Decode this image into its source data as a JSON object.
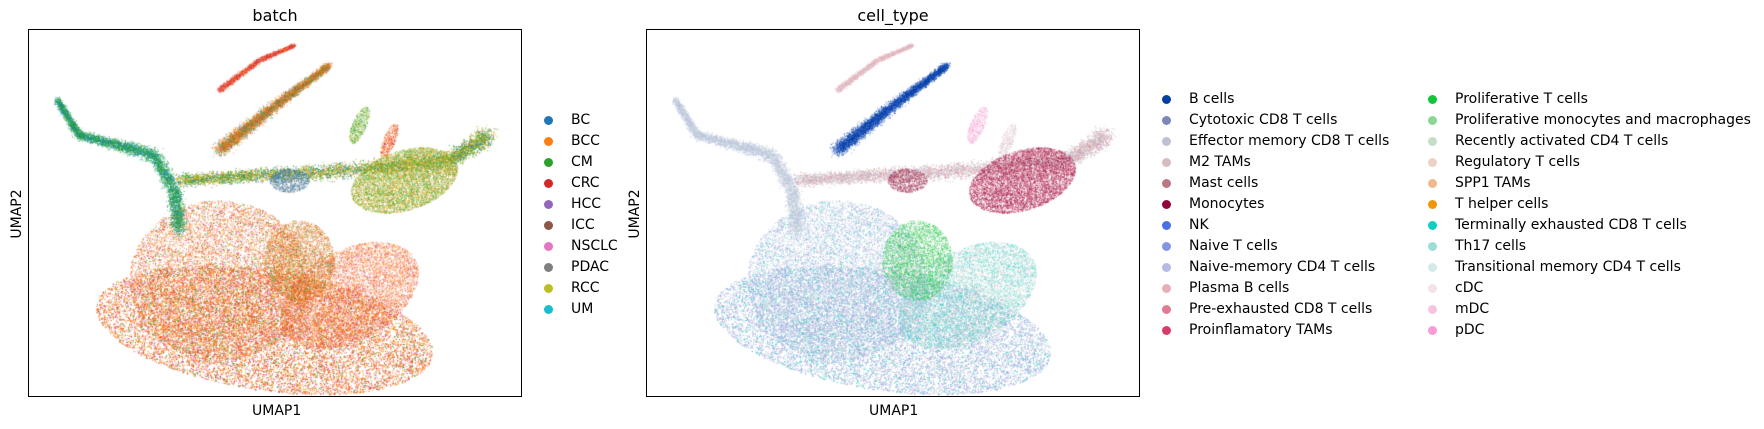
{
  "chart_data": [
    {
      "type": "scatter",
      "title": "batch",
      "xlabel": "UMAP1",
      "ylabel": "UMAP2",
      "grid": false,
      "legend_placement": "right",
      "categories": [
        "BC",
        "BCC",
        "CM",
        "CRC",
        "HCC",
        "ICC",
        "NSCLC",
        "PDAC",
        "RCC",
        "UM"
      ],
      "colors": [
        "#1f77b4",
        "#ff7f0e",
        "#2ca02c",
        "#d62728",
        "#9467bd",
        "#8c564b",
        "#e377c2",
        "#7f7f7f",
        "#bcbd22",
        "#17becf"
      ]
    },
    {
      "type": "scatter",
      "title": "cell_type",
      "xlabel": "UMAP1",
      "ylabel": "UMAP2",
      "grid": false,
      "legend_placement": "right",
      "categories": [
        "B cells",
        "Cytotoxic CD8 T cells",
        "Effector memory CD8 T cells",
        "M2 TAMs",
        "Mast cells",
        "Monocytes",
        "NK",
        "Naive T cells",
        "Naive-memory CD4 T cells",
        "Plasma B cells",
        "Pre-exhausted CD8 T cells",
        "Proinflamatory TAMs",
        "Proliferative T cells",
        "Proliferative monocytes and macrophages",
        "Recently activated CD4 T cells",
        "Regulatory T cells",
        "SPP1 TAMs",
        "T helper cells",
        "Terminally exhausted CD8 T cells",
        "Th17 cells",
        "Transitional memory CD4 T cells",
        "cDC",
        "mDC",
        "pDC"
      ],
      "colors": [
        "#023fa5",
        "#7d87b9",
        "#bec1d4",
        "#d6bcc0",
        "#bb7784",
        "#8e063b",
        "#4a6fe3",
        "#8595e1",
        "#b5bbe3",
        "#e6afb9",
        "#e07b91",
        "#d33f6a",
        "#11c638",
        "#8dd593",
        "#c6dec7",
        "#ead3c6",
        "#f0b98d",
        "#ef9708",
        "#0fcfc0",
        "#9cded6",
        "#d5eae7",
        "#f3e1eb",
        "#f6c4e1",
        "#f79cd4"
      ]
    }
  ]
}
